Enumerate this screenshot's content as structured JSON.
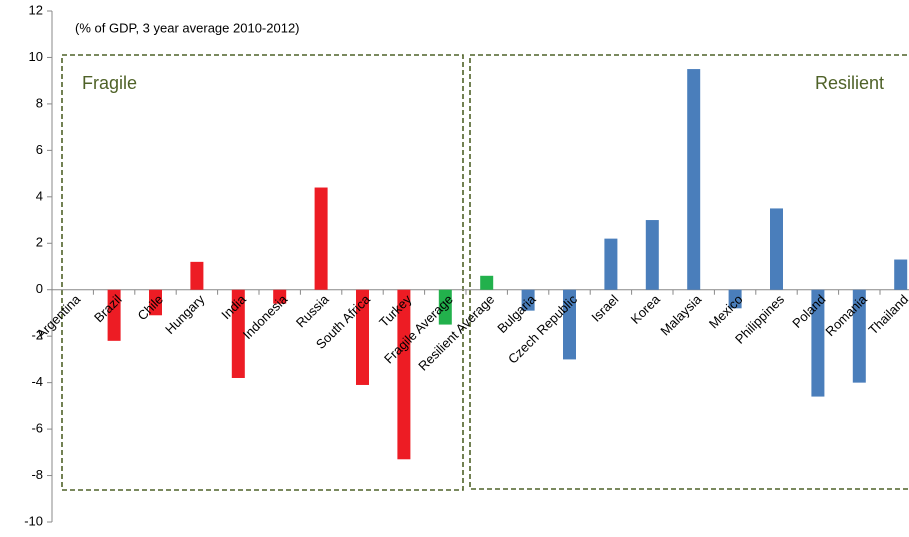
{
  "chart_data": {
    "type": "bar",
    "annotations": [
      "(% of GDP, 3 year average 2010-2012)",
      "Fragile",
      "Resilient"
    ],
    "categories": [
      "Argentina",
      "Brazil",
      "Chile",
      "Hungary",
      "India",
      "Indonesia",
      "Russia",
      "South Africa",
      "Turkey",
      "Fragile Average",
      "Resilient Average",
      "Bulgaria",
      "Czech Republic",
      "Israel",
      "Korea",
      "Malaysia",
      "Mexico",
      "Philippines",
      "Poland",
      "Romania",
      "Thailand"
    ],
    "values": [
      0,
      -2.2,
      -1.1,
      1.2,
      -3.8,
      -0.6,
      4.4,
      -4.1,
      -7.3,
      -1.5,
      0.6,
      -0.9,
      -3.0,
      2.2,
      3.0,
      9.5,
      -0.8,
      3.5,
      -4.6,
      -4.0,
      1.3
    ],
    "colors": [
      "#ed1c24",
      "#ed1c24",
      "#ed1c24",
      "#ed1c24",
      "#ed1c24",
      "#ed1c24",
      "#ed1c24",
      "#ed1c24",
      "#ed1c24",
      "#22b14c",
      "#22b14c",
      "#4a7ebb",
      "#4a7ebb",
      "#4a7ebb",
      "#4a7ebb",
      "#4a7ebb",
      "#4a7ebb",
      "#4a7ebb",
      "#4a7ebb",
      "#4a7ebb",
      "#4a7ebb"
    ],
    "ylim": [
      -10,
      12
    ],
    "yticks": [
      -10,
      -8,
      -6,
      -4,
      -2,
      0,
      2,
      4,
      6,
      8,
      10,
      12
    ],
    "grid": false
  }
}
